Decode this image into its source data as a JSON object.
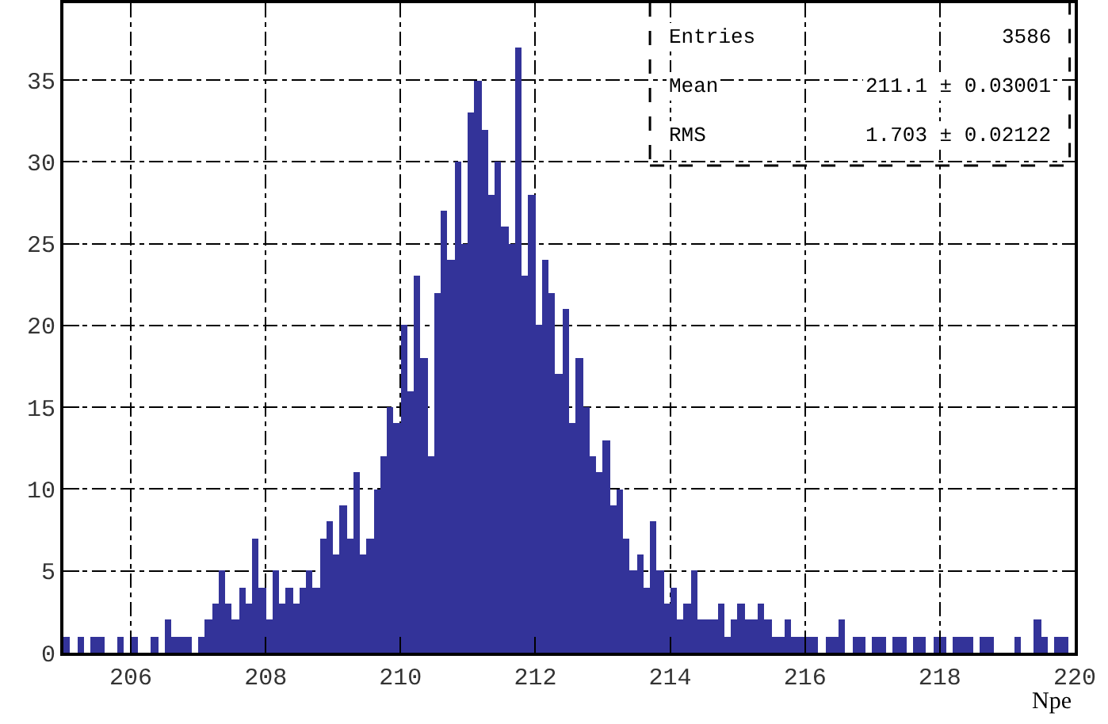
{
  "chart_data": {
    "type": "histogram",
    "xlabel": "Npe",
    "color": "#333399",
    "bins": [
      205.0,
      205.1,
      205.2,
      205.3,
      205.4,
      205.5,
      205.6,
      205.7,
      205.8,
      205.9,
      206.0,
      206.1,
      206.2,
      206.3,
      206.4,
      206.5,
      206.6,
      206.7,
      206.8,
      206.9,
      207.0,
      207.1,
      207.2,
      207.3,
      207.4,
      207.5,
      207.6,
      207.7,
      207.8,
      207.9,
      208.0,
      208.1,
      208.2,
      208.3,
      208.4,
      208.5,
      208.6,
      208.7,
      208.8,
      208.9,
      209.0,
      209.1,
      209.2,
      209.3,
      209.4,
      209.5,
      209.6,
      209.7,
      209.8,
      209.9,
      210.0,
      210.1,
      210.2,
      210.3,
      210.4,
      210.5,
      210.6,
      210.7,
      210.8,
      210.9,
      211.0,
      211.1,
      211.2,
      211.3,
      211.4,
      211.5,
      211.6,
      211.7,
      211.8,
      211.9,
      212.0,
      212.1,
      212.2,
      212.3,
      212.4,
      212.5,
      212.6,
      212.7,
      212.8,
      212.9,
      213.0,
      213.1,
      213.2,
      213.3,
      213.4,
      213.5,
      213.6,
      213.7,
      213.8,
      213.9,
      214.0,
      214.1,
      214.2,
      214.3,
      214.4,
      214.5,
      214.6,
      214.7,
      214.8,
      214.9,
      215.0,
      215.1,
      215.2,
      215.3,
      215.4,
      215.5,
      215.6,
      215.7,
      215.8,
      215.9,
      216.0,
      216.1,
      216.2,
      216.3,
      216.4,
      216.5,
      216.6,
      216.7,
      216.8,
      216.9,
      217.0,
      217.1,
      217.2,
      217.3,
      217.4,
      217.5,
      217.6,
      217.7,
      217.8,
      217.9,
      218.0,
      218.1,
      218.2,
      218.3,
      218.4,
      218.5,
      218.6,
      218.7,
      218.8,
      218.9,
      219.0,
      219.1,
      219.2,
      219.3,
      219.4,
      219.5,
      219.6,
      219.7,
      219.8,
      219.9,
      220.0
    ],
    "values": [
      1,
      0,
      1,
      0,
      1,
      1,
      0,
      0,
      1,
      0,
      1,
      0,
      0,
      1,
      0,
      2,
      1,
      1,
      1,
      0,
      1,
      2,
      3,
      5,
      3,
      2,
      4,
      3,
      7,
      4,
      2,
      5,
      3,
      4,
      3,
      4,
      5,
      4,
      7,
      8,
      6,
      9,
      7,
      11,
      6,
      7,
      10,
      12,
      15,
      14,
      20,
      16,
      23,
      18,
      12,
      22,
      27,
      24,
      30,
      25,
      33,
      35,
      32,
      28,
      30,
      26,
      25,
      37,
      23,
      28,
      20,
      24,
      22,
      17,
      21,
      14,
      18,
      15,
      12,
      11,
      13,
      9,
      10,
      7,
      5,
      6,
      4,
      8,
      5,
      3,
      4,
      2,
      3,
      5,
      2,
      2,
      2,
      3,
      1,
      2,
      3,
      2,
      2,
      3,
      2,
      1,
      1,
      2,
      1,
      1,
      1,
      1,
      0,
      1,
      1,
      2,
      0,
      1,
      1,
      0,
      1,
      1,
      0,
      1,
      1,
      0,
      1,
      1,
      0,
      1,
      1,
      0,
      1,
      1,
      1,
      0,
      1,
      1,
      0,
      0,
      0,
      1,
      0,
      0,
      2,
      1,
      0,
      1,
      1,
      0
    ],
    "xlim": [
      205,
      220
    ],
    "xticks": [
      206,
      208,
      210,
      212,
      214,
      216,
      218,
      220
    ],
    "ylim": [
      0,
      39.7
    ],
    "yticks": [
      0,
      5,
      10,
      15,
      20,
      25,
      30,
      35
    ],
    "grid": true,
    "annotations": [
      "Entries",
      "3586",
      "Mean",
      "211.1 ± 0.03001",
      "RMS",
      "1.703 ± 0.02122"
    ]
  }
}
